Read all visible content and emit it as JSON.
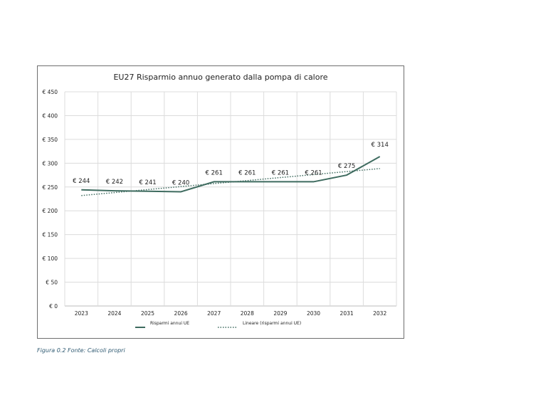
{
  "chart_data": {
    "type": "line",
    "title": "EU27 Risparmio annuo generato dalla pompa di calore",
    "categories": [
      "2023",
      "2024",
      "2025",
      "2026",
      "2027",
      "2028",
      "2029",
      "2030",
      "2031",
      "2032"
    ],
    "series": [
      {
        "name": "Risparmi annui UE",
        "values": [
          244,
          242,
          241,
          240,
          261,
          261,
          261,
          261,
          275,
          314
        ],
        "color": "#3e6b5f",
        "style": "solid",
        "data_labels": [
          "€ 244",
          "€ 242",
          "€ 241",
          "€ 240",
          "€ 261",
          "€ 261",
          "€ 261",
          "€ 261",
          "€ 275",
          "€ 314"
        ]
      },
      {
        "name": "Lineare (risparmi annui UE)",
        "values": [
          232,
          238.3,
          244.6,
          250.9,
          257.2,
          263.5,
          269.8,
          276.1,
          282.4,
          288.7
        ],
        "color": "#3e6b5f",
        "style": "dotted"
      }
    ],
    "ylim": [
      0,
      450
    ],
    "yticks": [
      0,
      50,
      100,
      150,
      200,
      250,
      300,
      350,
      400,
      450
    ],
    "ytick_labels": [
      "€ 0",
      "€ 50",
      "€ 100",
      "€ 150",
      "€ 200",
      "€ 250",
      "€ 300",
      "€ 350",
      "€ 400",
      "€ 450"
    ],
    "grid": true,
    "legend_position": "bottom",
    "xlabel": "",
    "ylabel": ""
  },
  "caption": "Figura 0.2 Fonte: Calcoli propri"
}
